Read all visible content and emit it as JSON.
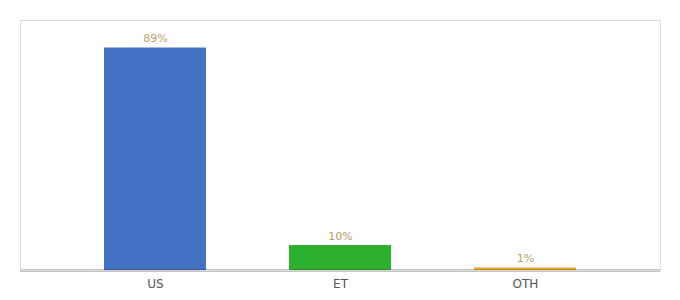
{
  "chart_data": {
    "type": "bar",
    "categories": [
      "US",
      "ET",
      "OTH"
    ],
    "values": [
      89,
      10,
      1
    ],
    "value_labels": [
      "89%",
      "10%",
      "1%"
    ],
    "colors": [
      "#4472c4",
      "#2db02d",
      "#f5a623"
    ],
    "ylim": [
      0,
      100
    ],
    "data_labels": true,
    "tick_labels": "x",
    "grid": false
  }
}
